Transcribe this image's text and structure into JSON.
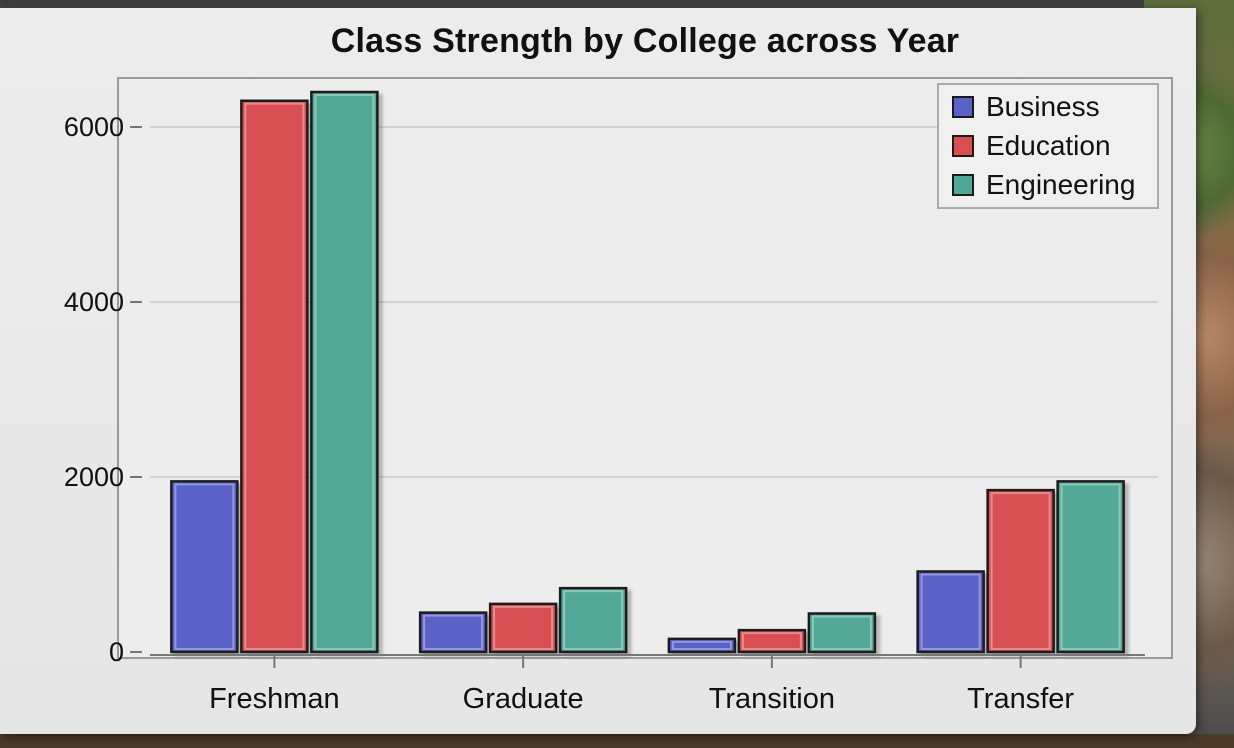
{
  "chart_data": {
    "type": "bar",
    "title": "Class Strength by College across Year",
    "xlabel": "",
    "ylabel": "",
    "categories": [
      "Freshman",
      "Graduate",
      "Transition",
      "Transfer"
    ],
    "series": [
      {
        "name": "Business",
        "color": "#5a62c8",
        "values": [
          1950,
          450,
          150,
          920
        ]
      },
      {
        "name": "Education",
        "color": "#d84f52",
        "values": [
          6300,
          550,
          250,
          1850
        ]
      },
      {
        "name": "Engineering",
        "color": "#52a898",
        "values": [
          6400,
          730,
          440,
          1950
        ]
      }
    ],
    "ylim": [
      0,
      6500
    ],
    "yticks": [
      0,
      2000,
      4000,
      6000
    ],
    "ytick_labels": [
      "0",
      "2000",
      "4000",
      "6000"
    ],
    "grid": true,
    "legend_position": "top-right"
  }
}
